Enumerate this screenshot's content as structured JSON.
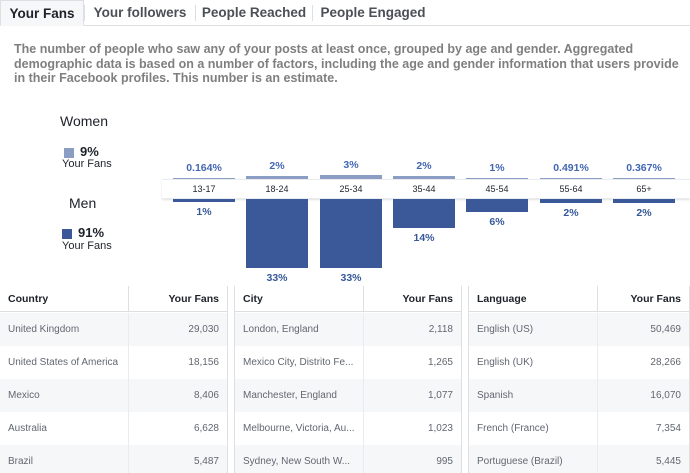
{
  "tabs": [
    {
      "label": "Your Fans",
      "active": true
    },
    {
      "label": "Your followers",
      "active": false
    },
    {
      "label": "People Reached",
      "active": false
    },
    {
      "label": "People Engaged",
      "active": false
    }
  ],
  "description": "The number of people who saw any of your posts at least once, grouped by age and gender. Aggregated demographic data is based on a number of factors, including the age and gender information that users provide in their Facebook profiles. This number is an estimate.",
  "legend": {
    "women": {
      "title": "Women",
      "percent": "9%",
      "sub": "Your Fans",
      "color": "#8b9dc3"
    },
    "men": {
      "title": "Men",
      "percent": "91%",
      "sub": "Your Fans",
      "color": "#3b5998"
    }
  },
  "chart_data": {
    "type": "bar",
    "categories": [
      "13-17",
      "18-24",
      "25-34",
      "35-44",
      "45-54",
      "55-64",
      "65+"
    ],
    "series": [
      {
        "name": "Women",
        "values": [
          0.164,
          2,
          3,
          2,
          1,
          0.491,
          0.367
        ],
        "labels": [
          "0.164%",
          "2%",
          "3%",
          "2%",
          "1%",
          "0.491%",
          "0.367%"
        ]
      },
      {
        "name": "Men",
        "values": [
          1,
          33,
          33,
          14,
          6,
          2,
          2
        ],
        "labels": [
          "1%",
          "33%",
          "33%",
          "14%",
          "6%",
          "2%",
          "2%"
        ]
      }
    ]
  },
  "tables": [
    {
      "headers": [
        "Country",
        "Your Fans"
      ],
      "rows": [
        [
          "United Kingdom",
          "29,030"
        ],
        [
          "United States of America",
          "18,156"
        ],
        [
          "Mexico",
          "8,406"
        ],
        [
          "Australia",
          "6,628"
        ],
        [
          "Brazil",
          "5,487"
        ]
      ]
    },
    {
      "headers": [
        "City",
        "Your Fans"
      ],
      "rows": [
        [
          "London, England",
          "2,118"
        ],
        [
          "Mexico City, Distrito Fe...",
          "1,265"
        ],
        [
          "Manchester, England",
          "1,077"
        ],
        [
          "Melbourne, Victoria, Au...",
          "1,023"
        ],
        [
          "Sydney, New South W...",
          "995"
        ]
      ]
    },
    {
      "headers": [
        "Language",
        "Your Fans"
      ],
      "rows": [
        [
          "English (US)",
          "50,469"
        ],
        [
          "English (UK)",
          "28,266"
        ],
        [
          "Spanish",
          "16,070"
        ],
        [
          "French (France)",
          "7,354"
        ],
        [
          "Portuguese (Brazil)",
          "5,445"
        ]
      ]
    }
  ]
}
